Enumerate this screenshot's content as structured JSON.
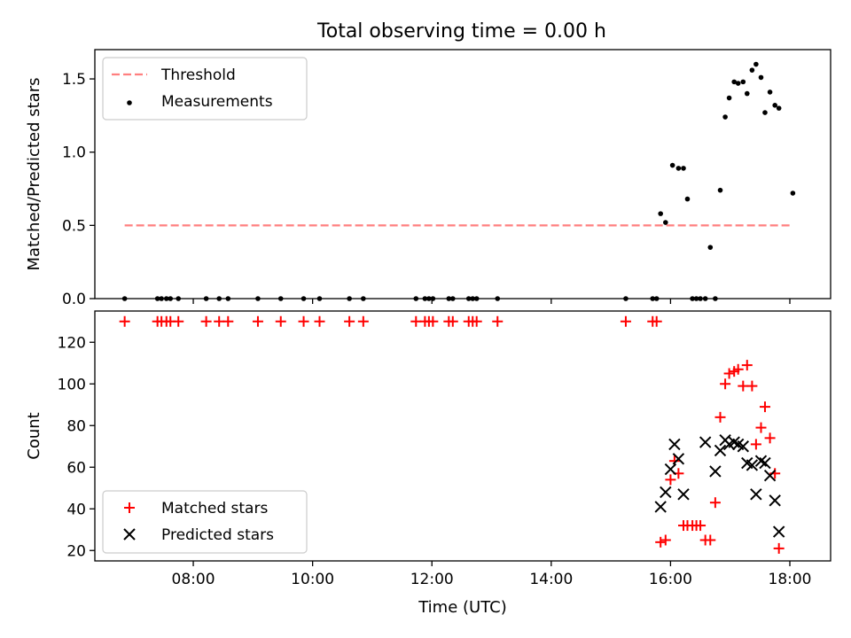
{
  "figure": {
    "title": "Total observing time = 0.00 h"
  },
  "chart_data": [
    {
      "type": "scatter",
      "panel": "top",
      "title": "Total observing time = 0.00 h",
      "xlabel": "",
      "ylabel": "Matched/Predicted stars",
      "xlim": [
        "06:21",
        "18:41"
      ],
      "ylim": [
        0,
        1.7
      ],
      "yticks": [
        0.0,
        0.5,
        1.0,
        1.5
      ],
      "ytick_labels": [
        "0.0",
        "0.5",
        "1.0",
        "1.5"
      ],
      "xticks": [
        "08:00",
        "10:00",
        "12:00",
        "14:00",
        "16:00",
        "18:00"
      ],
      "legend": {
        "placement": "upper left",
        "entries": [
          "Threshold",
          "Measurements"
        ]
      },
      "threshold": {
        "name": "Threshold",
        "y": 0.5,
        "x_start": "06:51",
        "x_end": "18:03",
        "color": "#ff7f7f",
        "style": "dashed"
      },
      "series": [
        {
          "name": "Measurements",
          "marker": "dot",
          "color": "#000000",
          "points": [
            [
              "06:51",
              0
            ],
            [
              "07:24",
              0
            ],
            [
              "07:28",
              0
            ],
            [
              "07:33",
              0
            ],
            [
              "07:37",
              0
            ],
            [
              "07:45",
              0
            ],
            [
              "08:13",
              0
            ],
            [
              "08:26",
              0
            ],
            [
              "08:35",
              0
            ],
            [
              "09:05",
              0
            ],
            [
              "09:28",
              0
            ],
            [
              "09:51",
              0
            ],
            [
              "10:07",
              0
            ],
            [
              "10:37",
              0
            ],
            [
              "10:51",
              0
            ],
            [
              "11:44",
              0
            ],
            [
              "11:53",
              0
            ],
            [
              "11:57",
              0
            ],
            [
              "12:01",
              0
            ],
            [
              "12:17",
              0
            ],
            [
              "12:21",
              0
            ],
            [
              "12:37",
              0
            ],
            [
              "12:41",
              0
            ],
            [
              "12:45",
              0
            ],
            [
              "13:06",
              0
            ],
            [
              "15:15",
              0
            ],
            [
              "15:42",
              0
            ],
            [
              "15:46",
              0
            ],
            [
              "15:50",
              0.58
            ],
            [
              "15:55",
              0.52
            ],
            [
              "16:02",
              0.91
            ],
            [
              "16:08",
              0.89
            ],
            [
              "16:13",
              0.89
            ],
            [
              "16:17",
              0.68
            ],
            [
              "16:22",
              0
            ],
            [
              "16:26",
              0
            ],
            [
              "16:30",
              0
            ],
            [
              "16:35",
              0
            ],
            [
              "16:40",
              0.35
            ],
            [
              "16:45",
              0
            ],
            [
              "16:50",
              0.74
            ],
            [
              "16:55",
              1.24
            ],
            [
              "16:59",
              1.37
            ],
            [
              "17:04",
              1.48
            ],
            [
              "17:08",
              1.47
            ],
            [
              "17:13",
              1.48
            ],
            [
              "17:17",
              1.4
            ],
            [
              "17:22",
              1.56
            ],
            [
              "17:26",
              1.6
            ],
            [
              "17:31",
              1.51
            ],
            [
              "17:35",
              1.27
            ],
            [
              "17:40",
              1.41
            ],
            [
              "17:45",
              1.32
            ],
            [
              "17:49",
              1.3
            ],
            [
              "18:03",
              0.72
            ]
          ]
        }
      ]
    },
    {
      "type": "scatter",
      "panel": "bottom",
      "title": "",
      "xlabel": "Time (UTC)",
      "ylabel": "Count",
      "xlim": [
        "06:21",
        "18:41"
      ],
      "ylim": [
        15,
        135
      ],
      "yticks": [
        20,
        40,
        60,
        80,
        100,
        120
      ],
      "xticks": [
        "08:00",
        "10:00",
        "12:00",
        "14:00",
        "16:00",
        "18:00"
      ],
      "legend": {
        "placement": "lower left",
        "entries": [
          "Matched stars",
          "Predicted stars"
        ]
      },
      "series": [
        {
          "name": "Matched stars",
          "marker": "plus",
          "color": "#ff0000",
          "points": [
            [
              "06:51",
              130
            ],
            [
              "07:24",
              130
            ],
            [
              "07:28",
              130
            ],
            [
              "07:33",
              130
            ],
            [
              "07:37",
              130
            ],
            [
              "07:45",
              130
            ],
            [
              "08:13",
              130
            ],
            [
              "08:26",
              130
            ],
            [
              "08:35",
              130
            ],
            [
              "09:05",
              130
            ],
            [
              "09:28",
              130
            ],
            [
              "09:51",
              130
            ],
            [
              "10:07",
              130
            ],
            [
              "10:37",
              130
            ],
            [
              "10:51",
              130
            ],
            [
              "11:44",
              130
            ],
            [
              "11:53",
              130
            ],
            [
              "11:57",
              130
            ],
            [
              "12:01",
              130
            ],
            [
              "12:17",
              130
            ],
            [
              "12:21",
              130
            ],
            [
              "12:37",
              130
            ],
            [
              "12:41",
              130
            ],
            [
              "12:45",
              130
            ],
            [
              "13:06",
              130
            ],
            [
              "15:15",
              130
            ],
            [
              "15:42",
              130
            ],
            [
              "15:46",
              130
            ],
            [
              "15:50",
              24
            ],
            [
              "15:55",
              25
            ],
            [
              "16:00",
              54
            ],
            [
              "16:04",
              63
            ],
            [
              "16:08",
              57
            ],
            [
              "16:13",
              32
            ],
            [
              "16:17",
              32
            ],
            [
              "16:22",
              32
            ],
            [
              "16:26",
              32
            ],
            [
              "16:30",
              32
            ],
            [
              "16:35",
              25
            ],
            [
              "16:40",
              25
            ],
            [
              "16:45",
              43
            ],
            [
              "16:50",
              84
            ],
            [
              "16:55",
              100
            ],
            [
              "16:59",
              105
            ],
            [
              "17:04",
              106
            ],
            [
              "17:08",
              107
            ],
            [
              "17:13",
              99
            ],
            [
              "17:17",
              109
            ],
            [
              "17:22",
              99
            ],
            [
              "17:26",
              71
            ],
            [
              "17:31",
              79
            ],
            [
              "17:35",
              89
            ],
            [
              "17:40",
              74
            ],
            [
              "17:45",
              57
            ],
            [
              "17:49",
              21
            ]
          ]
        },
        {
          "name": "Predicted stars",
          "marker": "x",
          "color": "#000000",
          "points": [
            [
              "15:50",
              41
            ],
            [
              "15:55",
              48
            ],
            [
              "16:00",
              59
            ],
            [
              "16:04",
              71
            ],
            [
              "16:08",
              64
            ],
            [
              "16:13",
              47
            ],
            [
              "16:35",
              72
            ],
            [
              "16:45",
              58
            ],
            [
              "16:50",
              68
            ],
            [
              "16:55",
              73
            ],
            [
              "16:59",
              71
            ],
            [
              "17:04",
              72
            ],
            [
              "17:08",
              71
            ],
            [
              "17:13",
              70
            ],
            [
              "17:17",
              62
            ],
            [
              "17:22",
              61
            ],
            [
              "17:26",
              47
            ],
            [
              "17:31",
              63
            ],
            [
              "17:35",
              62
            ],
            [
              "17:40",
              56
            ],
            [
              "17:45",
              44
            ],
            [
              "17:49",
              29
            ]
          ]
        }
      ]
    }
  ]
}
